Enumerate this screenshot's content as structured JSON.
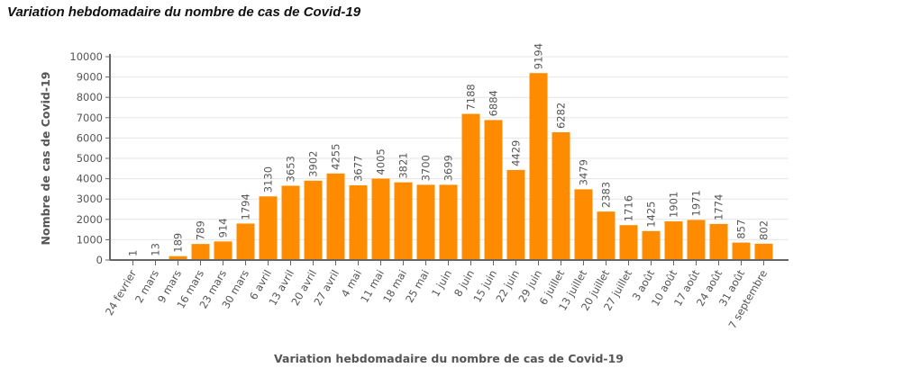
{
  "page_title": "Variation hebdomadaire du nombre de cas de Covid-19",
  "chart_data": {
    "type": "bar",
    "title": "Variation hebdomadaire du nombre de cas de Covid-19",
    "xlabel": "Variation hebdomadaire du nombre de cas de Covid-19",
    "ylabel": "Nombre de cas de Covid-19",
    "ylim": [
      0,
      10000
    ],
    "yticks": [
      0,
      1000,
      2000,
      3000,
      4000,
      5000,
      6000,
      7000,
      8000,
      9000,
      10000
    ],
    "grid": true,
    "color": "#ff8c00",
    "categories": [
      "24 fevrier",
      "2 mars",
      "9 mars",
      "16 mars",
      "23 mars",
      "30 mars",
      "6 avril",
      "13 avril",
      "20 avril",
      "27 avril",
      "4 mai",
      "11 mai",
      "18 mai",
      "25 mai",
      "1 juin",
      "8 juin",
      "15 juin",
      "22 juin",
      "29 juin",
      "6 juillet",
      "13 juillet",
      "20 juillet",
      "27 juillet",
      "3 août",
      "10 août",
      "17 août",
      "24 août",
      "31 août",
      "7 septembre"
    ],
    "values": [
      1,
      13,
      189,
      789,
      914,
      1794,
      3130,
      3653,
      3902,
      4255,
      3677,
      4005,
      3821,
      3700,
      3699,
      7188,
      6884,
      4429,
      9194,
      6282,
      3479,
      2383,
      1716,
      1425,
      1901,
      1971,
      1774,
      857,
      802
    ]
  }
}
